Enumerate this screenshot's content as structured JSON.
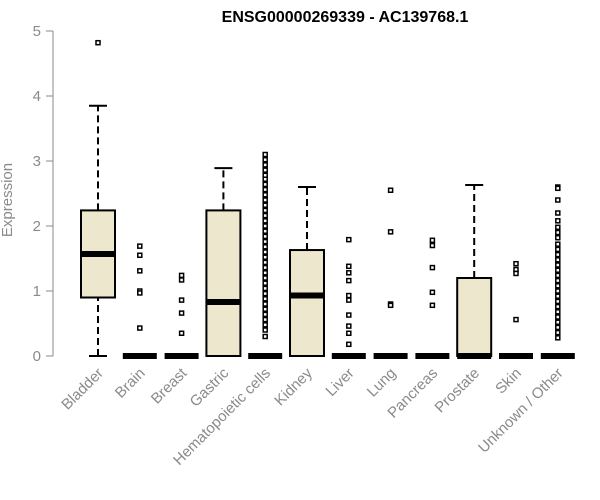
{
  "chart_data": {
    "type": "box",
    "title": "ENSG00000269339 - AC139768.1",
    "xlabel": "",
    "ylabel": "Expression",
    "ylim": [
      0,
      5
    ],
    "yticks": [
      0,
      1,
      2,
      3,
      4,
      5
    ],
    "grid": false,
    "legend": "none",
    "colors": {
      "box_fill": "#ede7cd",
      "stroke": "#000000",
      "axis": "#8a8a8a",
      "title": "#000000"
    },
    "categories": [
      "Bladder",
      "Brain",
      "Breast",
      "Gastric",
      "Hematopoietic cells",
      "Kidney",
      "Liver",
      "Lung",
      "Pancreas",
      "Prostate",
      "Skin",
      "Unknown / Other"
    ],
    "boxes": [
      {
        "category": "Bladder",
        "q1": 0.9,
        "median": 1.57,
        "q3": 2.24,
        "whisker_low": 0.0,
        "whisker_high": 3.85,
        "outliers": [
          4.82
        ]
      },
      {
        "category": "Brain",
        "q1": 0.0,
        "median": 0.0,
        "q3": 0.0,
        "whisker_low": 0.0,
        "whisker_high": 0.0,
        "outliers": [
          1.69,
          1.55,
          1.31,
          1.0,
          0.97,
          0.43
        ]
      },
      {
        "category": "Breast",
        "q1": 0.0,
        "median": 0.0,
        "q3": 0.0,
        "whisker_low": 0.0,
        "whisker_high": 0.0,
        "outliers": [
          1.24,
          1.17,
          0.86,
          0.66,
          0.35
        ]
      },
      {
        "category": "Gastric",
        "q1": 0.0,
        "median": 0.83,
        "q3": 2.24,
        "whisker_low": 0.0,
        "whisker_high": 2.89,
        "outliers": []
      },
      {
        "category": "Hematopoietic cells",
        "q1": 0.0,
        "median": 0.0,
        "q3": 0.0,
        "whisker_low": 0.0,
        "whisker_high": 0.0,
        "outliers": [
          3.1,
          3.02,
          2.94,
          2.86,
          2.78,
          2.72,
          2.64,
          2.56,
          2.48,
          2.4,
          2.32,
          2.24,
          2.16,
          2.08,
          2.0,
          1.92,
          1.84,
          1.76,
          1.68,
          1.6,
          1.52,
          1.44,
          1.36,
          1.28,
          1.2,
          1.12,
          1.04,
          0.96,
          0.88,
          0.8,
          0.72,
          0.64,
          0.56,
          0.48,
          0.4,
          0.3
        ]
      },
      {
        "category": "Kidney",
        "q1": 0.0,
        "median": 0.93,
        "q3": 1.63,
        "whisker_low": 0.0,
        "whisker_high": 2.6,
        "outliers": []
      },
      {
        "category": "Liver",
        "q1": 0.0,
        "median": 0.0,
        "q3": 0.0,
        "whisker_low": 0.0,
        "whisker_high": 0.0,
        "outliers": [
          1.79,
          1.38,
          1.28,
          1.16,
          0.93,
          0.86,
          0.63,
          0.46,
          0.35,
          0.18
        ]
      },
      {
        "category": "Lung",
        "q1": 0.0,
        "median": 0.0,
        "q3": 0.0,
        "whisker_low": 0.0,
        "whisker_high": 0.0,
        "outliers": [
          2.55,
          1.91,
          0.8,
          0.78
        ]
      },
      {
        "category": "Pancreas",
        "q1": 0.0,
        "median": 0.0,
        "q3": 0.0,
        "whisker_low": 0.0,
        "whisker_high": 0.0,
        "outliers": [
          1.78,
          1.7,
          1.36,
          0.98,
          0.78
        ]
      },
      {
        "category": "Prostate",
        "q1": 0.0,
        "median": 0.0,
        "q3": 1.2,
        "whisker_low": 0.0,
        "whisker_high": 2.63,
        "outliers": []
      },
      {
        "category": "Skin",
        "q1": 0.0,
        "median": 0.0,
        "q3": 0.0,
        "whisker_low": 0.0,
        "whisker_high": 0.0,
        "outliers": [
          1.42,
          1.33,
          1.27,
          0.56
        ]
      },
      {
        "category": "Unknown / Other",
        "q1": 0.0,
        "median": 0.0,
        "q3": 0.0,
        "whisker_low": 0.0,
        "whisker_high": 0.0,
        "outliers": [
          2.6,
          2.58,
          2.4,
          2.2,
          2.08,
          1.98,
          1.9,
          1.82,
          1.72,
          1.64,
          1.56,
          1.48,
          1.4,
          1.32,
          1.24,
          1.16,
          1.08,
          1.0,
          0.92,
          0.84,
          0.76,
          0.68,
          0.6,
          0.52,
          0.44,
          0.36,
          0.28
        ]
      }
    ]
  }
}
